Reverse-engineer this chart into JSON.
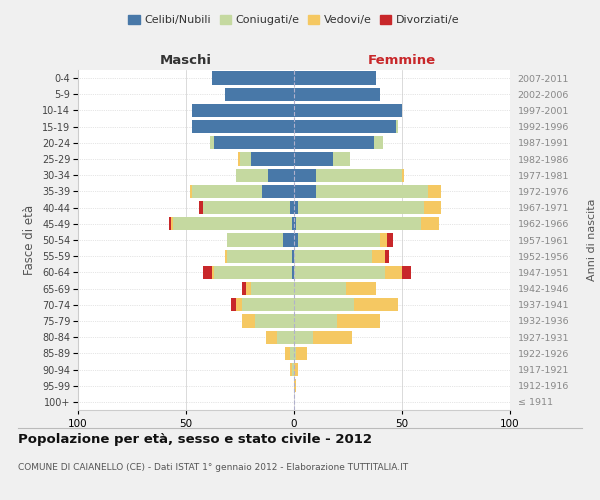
{
  "age_groups": [
    "100+",
    "95-99",
    "90-94",
    "85-89",
    "80-84",
    "75-79",
    "70-74",
    "65-69",
    "60-64",
    "55-59",
    "50-54",
    "45-49",
    "40-44",
    "35-39",
    "30-34",
    "25-29",
    "20-24",
    "15-19",
    "10-14",
    "5-9",
    "0-4"
  ],
  "birth_years": [
    "≤ 1911",
    "1912-1916",
    "1917-1921",
    "1922-1926",
    "1927-1931",
    "1932-1936",
    "1937-1941",
    "1942-1946",
    "1947-1951",
    "1952-1956",
    "1957-1961",
    "1962-1966",
    "1967-1971",
    "1972-1976",
    "1977-1981",
    "1982-1986",
    "1987-1991",
    "1992-1996",
    "1997-2001",
    "2002-2006",
    "2007-2011"
  ],
  "maschi": {
    "celibi": [
      0,
      0,
      0,
      0,
      0,
      0,
      0,
      0,
      1,
      1,
      5,
      1,
      2,
      15,
      12,
      20,
      37,
      47,
      47,
      32,
      38
    ],
    "coniugati": [
      0,
      0,
      1,
      2,
      8,
      18,
      24,
      20,
      36,
      30,
      26,
      55,
      40,
      32,
      15,
      5,
      2,
      0,
      0,
      0,
      0
    ],
    "vedovi": [
      0,
      0,
      1,
      2,
      5,
      6,
      3,
      2,
      1,
      1,
      0,
      1,
      0,
      1,
      0,
      1,
      0,
      0,
      0,
      0,
      0
    ],
    "divorziati": [
      0,
      0,
      0,
      0,
      0,
      0,
      2,
      2,
      4,
      0,
      0,
      1,
      2,
      0,
      0,
      0,
      0,
      0,
      0,
      0,
      0
    ]
  },
  "femmine": {
    "nubili": [
      0,
      0,
      0,
      0,
      0,
      0,
      0,
      0,
      0,
      0,
      2,
      1,
      2,
      10,
      10,
      18,
      37,
      47,
      50,
      40,
      38
    ],
    "coniugate": [
      0,
      0,
      0,
      1,
      9,
      20,
      28,
      24,
      42,
      36,
      38,
      58,
      58,
      52,
      40,
      8,
      4,
      1,
      0,
      0,
      0
    ],
    "vedove": [
      0,
      1,
      2,
      5,
      18,
      20,
      20,
      14,
      8,
      6,
      3,
      8,
      8,
      6,
      1,
      0,
      0,
      0,
      0,
      0,
      0
    ],
    "divorziate": [
      0,
      0,
      0,
      0,
      0,
      0,
      0,
      0,
      4,
      2,
      3,
      0,
      0,
      0,
      0,
      0,
      0,
      0,
      0,
      0,
      0
    ]
  },
  "colors": {
    "celibi_nubili": "#4878a8",
    "coniugati": "#c5d9a0",
    "vedovi": "#f5c862",
    "divorziati": "#c8272a"
  },
  "title": "Popolazione per età, sesso e stato civile - 2012",
  "subtitle": "COMUNE DI CAIANELLO (CE) - Dati ISTAT 1° gennaio 2012 - Elaborazione TUTTITALIA.IT",
  "xlabel_left": "Maschi",
  "xlabel_right": "Femmine",
  "ylabel": "Fasce di età",
  "ylabel_right": "Anni di nascita",
  "xlim": 100,
  "bg_color": "#f0f0f0",
  "plot_bg": "#ffffff"
}
